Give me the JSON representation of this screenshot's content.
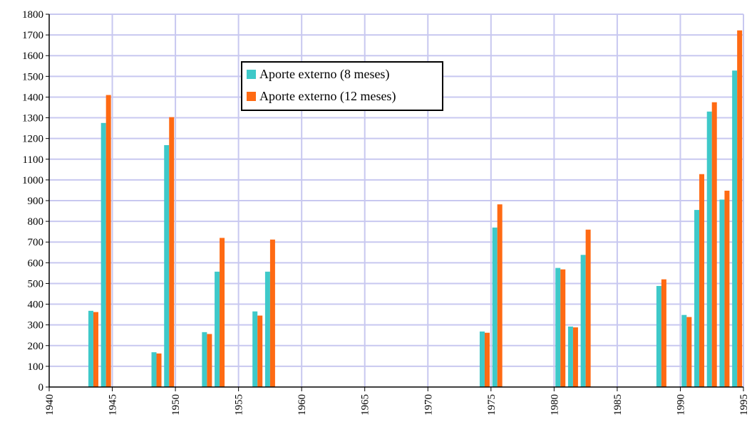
{
  "chart_data": {
    "type": "bar",
    "title": "",
    "xlabel": "",
    "ylabel": "",
    "xlim": [
      1940,
      1995
    ],
    "ylim": [
      0,
      1800
    ],
    "yticks": [
      0,
      100,
      200,
      300,
      400,
      500,
      600,
      700,
      800,
      900,
      1000,
      1100,
      1200,
      1300,
      1400,
      1500,
      1600,
      1700,
      1800
    ],
    "xticks": [
      1940,
      1945,
      1950,
      1955,
      1960,
      1965,
      1970,
      1975,
      1980,
      1985,
      1990,
      1995
    ],
    "grid": true,
    "legend_position": "top-center",
    "categories": [
      1943,
      1944,
      1948,
      1949,
      1952,
      1953,
      1956,
      1957,
      1974,
      1975,
      1980,
      1981,
      1982,
      1988,
      1990,
      1991,
      1992,
      1993,
      1994
    ],
    "series": [
      {
        "name": "Aporte externo (8 meses)",
        "color": "#3ec9c9",
        "values": [
          368,
          1275,
          168,
          1168,
          265,
          557,
          365,
          557,
          268,
          770,
          575,
          292,
          638,
          488,
          348,
          855,
          1330,
          905,
          1528
        ]
      },
      {
        "name": "Aporte externo (12 meses)",
        "color": "#ff6a13",
        "values": [
          362,
          1410,
          162,
          1303,
          256,
          720,
          345,
          712,
          262,
          882,
          568,
          288,
          760,
          520,
          338,
          1028,
          1375,
          948,
          1722
        ]
      }
    ]
  }
}
